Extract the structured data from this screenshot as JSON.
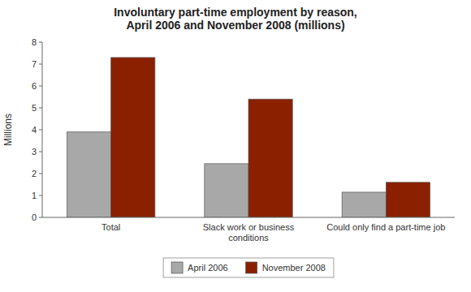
{
  "chart_data": {
    "type": "bar",
    "title": "Involuntary part-time employment by reason,\nApril 2006 and November 2008 (millions)",
    "ylabel": "Millions",
    "categories": [
      "Total",
      "Slack work or business\nconditions",
      "Could only find a part-time job"
    ],
    "series": [
      {
        "name": "April 2006",
        "color": "#a8a8a8",
        "values": [
          3.9,
          2.45,
          1.15
        ]
      },
      {
        "name": "November 2008",
        "color": "#8b2000",
        "values": [
          7.3,
          5.4,
          1.6
        ]
      }
    ],
    "ylim": [
      0,
      8
    ],
    "yticks": [
      0,
      1,
      2,
      3,
      4,
      5,
      6,
      7,
      8
    ],
    "grid": false,
    "legend": "bottom"
  }
}
